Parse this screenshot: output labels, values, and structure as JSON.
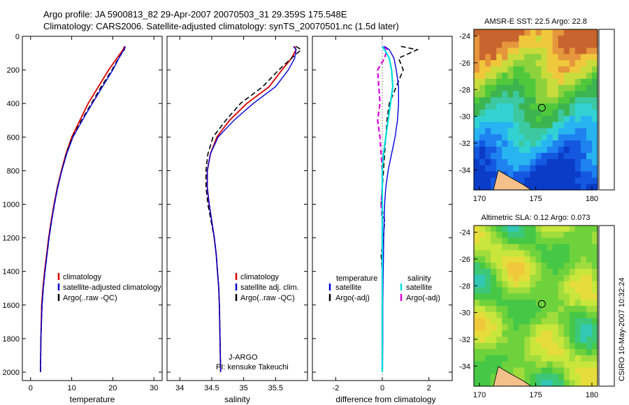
{
  "header": {
    "line1": "Argo profile: JA 5900813_82 29-Apr-2007 20070503_31 29.359S 175.548E",
    "line2": "Climatology: CARS2006. Satellite-adjusted climatology: synTS_20070501.nc (1.5d later)"
  },
  "footer_stamp": "CSIRO 10-May-2007 10:32:24",
  "chart_data": [
    {
      "type": "line",
      "xlabel": "temperature",
      "xlim": [
        -2,
        32
      ],
      "ylim": [
        0,
        2050
      ],
      "y_reversed": true,
      "xticks": [
        "0",
        "10",
        "20",
        "30"
      ],
      "yticks": [
        "0",
        "200",
        "400",
        "600",
        "800",
        "1000",
        "1200",
        "1400",
        "1600",
        "1800",
        "2000"
      ],
      "legend": [
        "climatology",
        "satellite-adjusted climatology",
        "Argo(..raw -QC)"
      ],
      "colors": {
        "climatology": "#dd0000",
        "satellite": "#0000dd",
        "argo": "#000000"
      },
      "series": [
        {
          "name": "climatology",
          "x": [
            22.8,
            22.5,
            21,
            19,
            16.5,
            14,
            12,
            10,
            8.6,
            7.5,
            6.5,
            5.7,
            5.0,
            4.4,
            3.9,
            3.4,
            3.0,
            2.7,
            2.5,
            2.4
          ],
          "y": [
            60,
            80,
            130,
            200,
            300,
            400,
            500,
            600,
            700,
            800,
            900,
            1000,
            1100,
            1200,
            1300,
            1400,
            1500,
            1600,
            1800,
            2000
          ]
        },
        {
          "name": "satellite",
          "x": [
            23,
            22.7,
            21.5,
            20,
            17.5,
            15,
            12.6,
            10.3,
            8.8,
            7.6,
            6.6,
            5.8,
            5.1,
            4.5,
            4.0,
            3.5,
            3.1,
            2.8,
            2.5,
            2.4
          ],
          "y": [
            60,
            80,
            130,
            200,
            300,
            400,
            500,
            600,
            700,
            800,
            900,
            1000,
            1100,
            1200,
            1300,
            1400,
            1500,
            1600,
            1800,
            2000
          ]
        },
        {
          "name": "Argo",
          "x": [
            23,
            22.8,
            21.4,
            19.8,
            17.2,
            14.8,
            12.4,
            10.2,
            8.7,
            7.6,
            6.6,
            5.8,
            5.1,
            4.5,
            4.0,
            3.5,
            3.1,
            2.8,
            2.5,
            2.4
          ],
          "y": [
            60,
            80,
            130,
            200,
            300,
            400,
            500,
            600,
            700,
            800,
            900,
            1000,
            1100,
            1200,
            1300,
            1400,
            1500,
            1600,
            1800,
            2000
          ]
        }
      ]
    },
    {
      "type": "line",
      "xlabel": "salinity",
      "xlim": [
        33.8,
        36.0
      ],
      "ylim": [
        0,
        2050
      ],
      "y_reversed": true,
      "xticks": [
        "34",
        "34.5",
        "35",
        "35.5"
      ],
      "legend": [
        "climatology",
        "satellite adj. clim.",
        "Argo(..raw -QC)"
      ],
      "annotation": [
        "J-ARGO",
        "PI: kensuke Takeuchi"
      ],
      "series": [
        {
          "name": "climatology",
          "x": [
            35.8,
            35.82,
            35.75,
            35.6,
            35.4,
            35.05,
            34.78,
            34.58,
            34.48,
            34.43,
            34.43,
            34.46,
            34.5,
            34.54,
            34.57,
            34.59,
            34.61,
            34.62,
            34.63,
            34.64
          ],
          "y": [
            60,
            80,
            130,
            200,
            300,
            400,
            500,
            600,
            700,
            800,
            900,
            1000,
            1100,
            1200,
            1300,
            1400,
            1500,
            1600,
            1800,
            2000
          ]
        },
        {
          "name": "satellite",
          "x": [
            35.78,
            35.82,
            35.8,
            35.7,
            35.5,
            35.15,
            34.85,
            34.6,
            34.48,
            34.43,
            34.43,
            34.46,
            34.5,
            34.54,
            34.57,
            34.59,
            34.61,
            34.62,
            34.63,
            34.64
          ],
          "y": [
            60,
            80,
            130,
            200,
            300,
            400,
            500,
            600,
            700,
            800,
            900,
            1000,
            1100,
            1200,
            1300,
            1400,
            1500,
            1600,
            1800,
            2000
          ]
        },
        {
          "name": "Argo",
          "x": [
            35.82,
            35.9,
            35.75,
            35.55,
            35.3,
            34.95,
            34.72,
            34.52,
            34.44,
            34.41,
            34.41,
            34.44,
            34.49,
            34.54,
            34.57,
            34.59,
            34.61,
            34.62,
            34.63,
            34.64
          ],
          "y": [
            60,
            80,
            130,
            200,
            300,
            400,
            500,
            600,
            700,
            800,
            900,
            1000,
            1100,
            1200,
            1300,
            1400,
            1500,
            1600,
            1800,
            2000
          ]
        }
      ]
    },
    {
      "type": "line",
      "xlabel": "difference from climatology",
      "xlim": [
        -3,
        3
      ],
      "ylim": [
        0,
        2050
      ],
      "y_reversed": true,
      "xticks": [
        "-2",
        "0",
        "2"
      ],
      "legend_temperature": [
        "temperature",
        "satellite",
        "Argo(-adj)"
      ],
      "legend_salinity": [
        "salinity",
        "satellite",
        "Argo(-adj)"
      ],
      "colors": {
        "temp_satellite": "#0000dd",
        "temp_argo": "#000000",
        "sal_satellite": "#00dddd",
        "sal_argo": "#dd00dd"
      },
      "series": [
        {
          "name": "temperature satellite",
          "x": [
            0.1,
            0.3,
            0.5,
            0.6,
            0.7,
            0.7,
            0.65,
            0.55,
            0.4,
            0.25,
            0.15,
            0.1,
            0.08,
            0.06,
            0.05,
            0.04,
            0.03,
            0.02,
            0.02,
            0.01
          ],
          "y": [
            60,
            80,
            130,
            200,
            300,
            400,
            500,
            600,
            700,
            800,
            900,
            1000,
            1100,
            1200,
            1300,
            1400,
            1500,
            1600,
            1800,
            2000
          ]
        },
        {
          "name": "temperature Argo(-adj)",
          "x": [
            0.8,
            1.5,
            0.7,
            0.9,
            0.6,
            0.3,
            0.2,
            0.15,
            0.1,
            0.05,
            0.0,
            -0.05,
            0.1,
            0.05,
            -0.05,
            0.0,
            0.0,
            0.0,
            0.0,
            0.0
          ],
          "y": [
            60,
            80,
            130,
            200,
            300,
            400,
            500,
            600,
            700,
            800,
            900,
            1000,
            1100,
            1200,
            1300,
            1400,
            1500,
            1600,
            1800,
            2000
          ]
        },
        {
          "name": "salinity satellite",
          "x": [
            0.0,
            0.1,
            0.3,
            0.4,
            0.45,
            0.35,
            0.25,
            0.15,
            0.05,
            0.0,
            0.0,
            0.0,
            0.0,
            0.0,
            0.0,
            0.0,
            0.0,
            0.0,
            0.0,
            0.0
          ],
          "y": [
            60,
            80,
            130,
            200,
            300,
            400,
            500,
            600,
            700,
            800,
            900,
            1000,
            1100,
            1200,
            1300,
            1400,
            1500,
            1600,
            1800,
            2000
          ]
        },
        {
          "name": "salinity Argo(-adj)",
          "x": [
            0.05,
            0.2,
            0.1,
            -0.2,
            -0.15,
            -0.1,
            -0.2,
            -0.1,
            -0.05,
            0.0,
            0.0,
            -0.05,
            0.0,
            0.0,
            0.0,
            0.0,
            0.0,
            0.0,
            0.0,
            0.0
          ],
          "y": [
            60,
            80,
            130,
            200,
            300,
            400,
            500,
            600,
            700,
            800,
            900,
            1000,
            1100,
            1200,
            1300,
            1400,
            1500,
            1600,
            1800,
            2000
          ]
        }
      ]
    },
    {
      "type": "heatmap",
      "title": "AMSR-E SST: 22.5 Argo: 22.8",
      "xticks": [
        "170",
        "175",
        "180"
      ],
      "yticks": [
        "-24",
        "-26",
        "-28",
        "-30",
        "-32",
        "-34"
      ],
      "xlim": [
        169.5,
        180.5
      ],
      "ylim": [
        -35.5,
        -23.5
      ],
      "marker": {
        "lon": 175.548,
        "lat": -29.359
      }
    },
    {
      "type": "heatmap",
      "title": "Altimetric SLA: 0.12 Argo: 0.073",
      "xticks": [
        "170",
        "175",
        "180"
      ],
      "yticks": [
        "-24",
        "-26",
        "-28",
        "-30",
        "-32",
        "-34"
      ],
      "xlim": [
        169.5,
        180.5
      ],
      "ylim": [
        -35.5,
        -23.5
      ],
      "marker": {
        "lon": 175.548,
        "lat": -29.359
      }
    }
  ]
}
